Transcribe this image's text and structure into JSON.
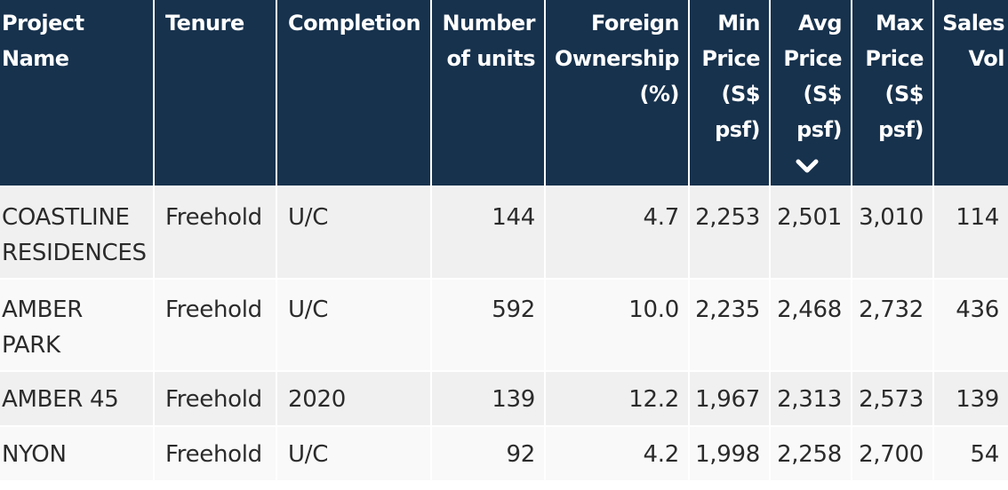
{
  "table": {
    "headers": {
      "project_name": "Project Name",
      "tenure": "Tenure",
      "completion": "Completion",
      "number_of_units": "Number of units",
      "foreign_ownership": "Foreign Ownership (%)",
      "min_price": "Min Price (S$ psf)",
      "avg_price": "Avg Price (S$ psf)",
      "max_price": "Max Price (S$ psf)",
      "sales_vol": "Sales Vol"
    },
    "sort": {
      "column": "avg_price",
      "direction": "descending",
      "icon": "chevron-down-icon",
      "color": "#ffffff"
    },
    "rows": [
      {
        "project_name": "COASTLINE RESIDENCES",
        "tenure": "Freehold",
        "completion": "U/C",
        "number_of_units": "144",
        "foreign_ownership": "4.7",
        "min_price": "2,253",
        "avg_price": "2,501",
        "max_price": "3,010",
        "sales_vol": "114"
      },
      {
        "project_name": "AMBER PARK",
        "tenure": "Freehold",
        "completion": "U/C",
        "number_of_units": "592",
        "foreign_ownership": "10.0",
        "min_price": "2,235",
        "avg_price": "2,468",
        "max_price": "2,732",
        "sales_vol": "436"
      },
      {
        "project_name": "AMBER 45",
        "tenure": "Freehold",
        "completion": "2020",
        "number_of_units": "139",
        "foreign_ownership": "12.2",
        "min_price": "1,967",
        "avg_price": "2,313",
        "max_price": "2,573",
        "sales_vol": "139"
      },
      {
        "project_name": "NYON",
        "tenure": "Freehold",
        "completion": "U/C",
        "number_of_units": "92",
        "foreign_ownership": "4.2",
        "min_price": "1,998",
        "avg_price": "2,258",
        "max_price": "2,700",
        "sales_vol": "54"
      }
    ]
  },
  "colors": {
    "header_bg": "#17324d",
    "header_text": "#ffffff",
    "row_odd_bg": "#f0f0f0",
    "row_even_bg": "#f9f9f9",
    "body_text": "#2b2b2b"
  }
}
